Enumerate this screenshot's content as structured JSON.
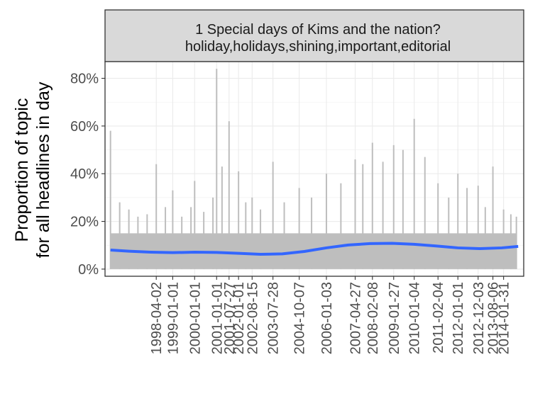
{
  "chart_data": {
    "type": "line",
    "panel_title_line1": "1 Special days of Kims and the nation?",
    "panel_title_line2": "holiday,holidays,shining,important,editorial",
    "ylabel_line1": "Proportion of topic",
    "ylabel_line2": "for all headlines in day",
    "xlabel": "",
    "y_tick_labels": [
      "0%",
      "20%",
      "40%",
      "60%",
      "80%"
    ],
    "y_ticks": [
      0,
      0.2,
      0.4,
      0.6,
      0.8
    ],
    "ylim": [
      -0.03,
      0.87
    ],
    "xlim": [
      "1995-12-01",
      "2015-01-01"
    ],
    "x_tick_labels": [
      "1998-04-02",
      "1999-01-01",
      "2000-01-01",
      "2001-01-01",
      "2001-07-27",
      "2002-01-01",
      "2002-08-15",
      "2003-07-28",
      "2004-10-07",
      "2006-01-03",
      "2007-04-27",
      "2008-02-08",
      "2009-01-27",
      "2010-01-04",
      "2011-02-04",
      "2012-01-01",
      "2012-12-03",
      "2013-08-06",
      "2014-01-31"
    ],
    "grid": true,
    "legend": "none",
    "series": [
      {
        "kind": "daily proportion",
        "color": "#bebebe",
        "x": [
          "1996-03-01",
          "1996-08-01",
          "1997-01-01",
          "1997-06-01",
          "1997-11-01",
          "1998-04-02",
          "1998-09-01",
          "1999-01-01",
          "1999-06-01",
          "1999-11-01",
          "2000-01-01",
          "2000-06-01",
          "2000-11-01",
          "2001-01-01",
          "2001-04-01",
          "2001-07-27",
          "2002-01-01",
          "2002-05-01",
          "2002-08-15",
          "2003-01-01",
          "2003-07-28",
          "2004-02-01",
          "2004-10-07",
          "2005-05-01",
          "2006-01-03",
          "2006-09-01",
          "2007-04-27",
          "2007-09-01",
          "2008-02-08",
          "2008-08-01",
          "2009-01-27",
          "2009-07-01",
          "2010-01-04",
          "2010-07-01",
          "2011-02-04",
          "2011-08-01",
          "2012-01-01",
          "2012-06-01",
          "2012-12-03",
          "2013-04-01",
          "2013-08-06",
          "2014-01-31",
          "2014-06-01",
          "2014-09-01"
        ],
        "y": [
          0.58,
          0.28,
          0.25,
          0.22,
          0.23,
          0.44,
          0.26,
          0.33,
          0.22,
          0.26,
          0.37,
          0.24,
          0.3,
          0.84,
          0.43,
          0.62,
          0.41,
          0.28,
          0.3,
          0.25,
          0.45,
          0.28,
          0.34,
          0.3,
          0.4,
          0.36,
          0.46,
          0.44,
          0.53,
          0.45,
          0.52,
          0.5,
          0.63,
          0.47,
          0.36,
          0.3,
          0.4,
          0.34,
          0.35,
          0.26,
          0.43,
          0.25,
          0.23,
          0.22
        ]
      },
      {
        "kind": "smoothed trend",
        "color": "#3366ff",
        "x": [
          "1996-03-01",
          "1997-01-01",
          "1998-01-01",
          "1999-01-01",
          "2000-01-01",
          "2001-01-01",
          "2002-01-01",
          "2003-01-01",
          "2004-01-01",
          "2005-01-01",
          "2006-01-01",
          "2007-01-01",
          "2008-01-01",
          "2009-01-01",
          "2010-01-01",
          "2011-01-01",
          "2012-01-01",
          "2013-01-01",
          "2014-01-01",
          "2014-10-01"
        ],
        "y": [
          0.08,
          0.075,
          0.071,
          0.069,
          0.071,
          0.07,
          0.066,
          0.062,
          0.064,
          0.074,
          0.089,
          0.101,
          0.107,
          0.108,
          0.104,
          0.097,
          0.089,
          0.086,
          0.089,
          0.095
        ]
      }
    ]
  }
}
